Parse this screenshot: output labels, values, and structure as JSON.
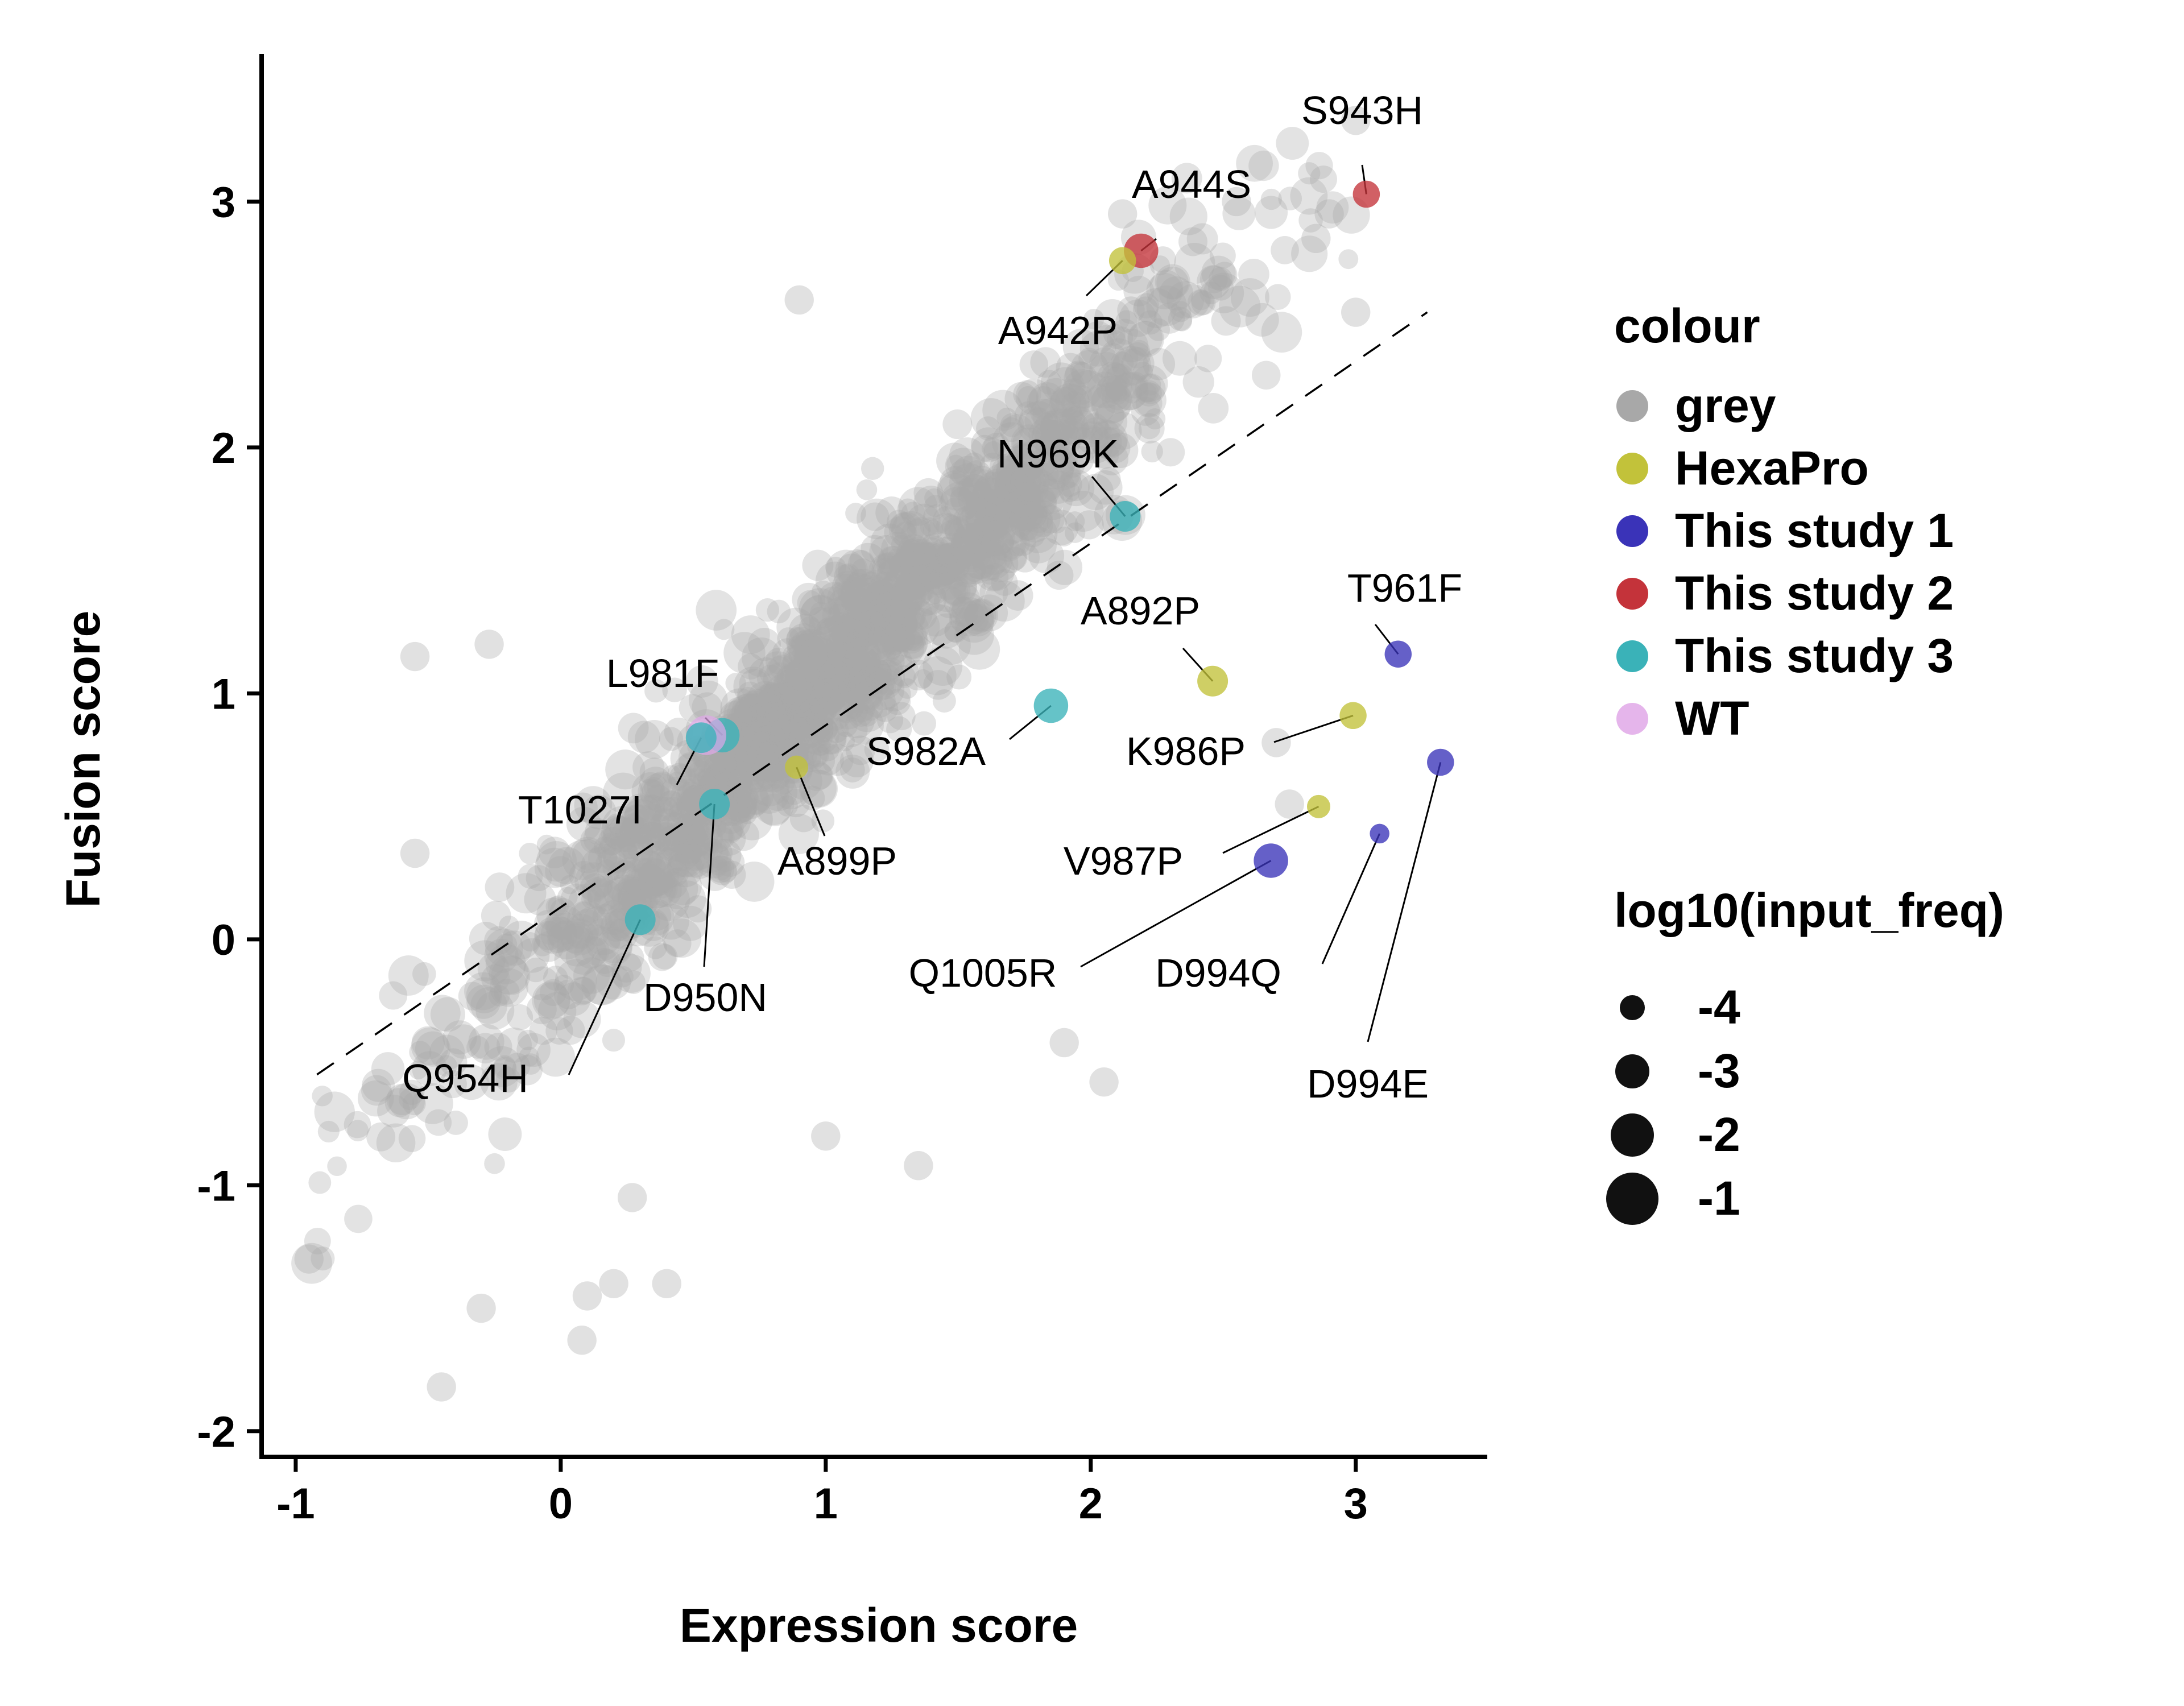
{
  "chart_data": {
    "type": "scatter",
    "title": "",
    "xlabel": "Expression score",
    "ylabel": "Fusion score",
    "xlim": [
      -1.12,
      3.55
    ],
    "ylim": [
      -2.1,
      3.6
    ],
    "xticks": [
      -1,
      0,
      1,
      2,
      3
    ],
    "yticks": [
      -2,
      -1,
      0,
      1,
      2,
      3
    ],
    "x_tick_labels": [
      "-1",
      "0",
      "1",
      "2",
      "3"
    ],
    "y_tick_labels": [
      "-2",
      "-1",
      "0",
      "1",
      "2",
      "3"
    ],
    "grid": false,
    "legend_position": "right",
    "reference_line": {
      "style": "dashed",
      "x": [
        -0.92,
        3.27
      ],
      "y": [
        -0.55,
        2.55
      ]
    },
    "colour_legend": {
      "title": "colour",
      "entries": [
        {
          "name": "grey",
          "color": "#a8a8a8"
        },
        {
          "name": "HexaPro",
          "color": "#c2c23a"
        },
        {
          "name": "This study 1",
          "color": "#3a33b8"
        },
        {
          "name": "This study 2",
          "color": "#c4333a"
        },
        {
          "name": "This study 3",
          "color": "#3ab2b8"
        },
        {
          "name": "WT",
          "color": "#e0a8e8"
        }
      ]
    },
    "size_legend": {
      "title": "log10(input_freq)",
      "entries": [
        {
          "label": "-4",
          "value": -4
        },
        {
          "label": "-3",
          "value": -3
        },
        {
          "label": "-2",
          "value": -2
        },
        {
          "label": "-1",
          "value": -1
        }
      ]
    },
    "background_cloud": {
      "group": "grey",
      "description_count": 1600,
      "outliers": [
        {
          "x": 3.0,
          "y": 3.33
        },
        {
          "x": 2.12,
          "y": 2.95
        },
        {
          "x": 2.55,
          "y": 3.0
        },
        {
          "x": 2.9,
          "y": 2.95
        },
        {
          "x": 2.85,
          "y": 2.85
        },
        {
          "x": 0.9,
          "y": 2.6
        },
        {
          "x": 3.0,
          "y": 2.55
        },
        {
          "x": -0.55,
          "y": 1.15
        },
        {
          "x": -0.27,
          "y": 1.2
        },
        {
          "x": -0.95,
          "y": -1.3
        },
        {
          "x": -0.3,
          "y": -1.5
        },
        {
          "x": 0.1,
          "y": -1.45
        },
        {
          "x": 0.08,
          "y": -1.63
        },
        {
          "x": 0.2,
          "y": -1.4
        },
        {
          "x": 0.4,
          "y": -1.4
        },
        {
          "x": -0.45,
          "y": -1.82
        },
        {
          "x": 1.35,
          "y": -0.92
        },
        {
          "x": 1.9,
          "y": -0.42
        },
        {
          "x": 2.05,
          "y": -0.58
        },
        {
          "x": 1.0,
          "y": -0.8
        },
        {
          "x": 0.27,
          "y": -1.05
        },
        {
          "x": -0.55,
          "y": 0.35
        },
        {
          "x": 2.75,
          "y": 0.55
        },
        {
          "x": 2.7,
          "y": 0.8
        }
      ]
    },
    "labeled_points": [
      {
        "label": "S943H",
        "x": 3.04,
        "y": 3.03,
        "group": "This study 2",
        "log10_input_freq": -2.5
      },
      {
        "label": "A944S",
        "x": 2.19,
        "y": 2.8,
        "group": "This study 2",
        "log10_input_freq": -1.5
      },
      {
        "label": "A942P",
        "x": 2.12,
        "y": 2.76,
        "group": "HexaPro",
        "log10_input_freq": -2.5
      },
      {
        "label": "N969K",
        "x": 2.13,
        "y": 1.72,
        "group": "This study 3",
        "log10_input_freq": -2.0
      },
      {
        "label": "T961F",
        "x": 3.16,
        "y": 1.16,
        "group": "This study 1",
        "log10_input_freq": -2.5
      },
      {
        "label": "A892P",
        "x": 2.46,
        "y": 1.05,
        "group": "HexaPro",
        "log10_input_freq": -2.0
      },
      {
        "label": "S982A",
        "x": 1.85,
        "y": 0.95,
        "group": "This study 3",
        "log10_input_freq": -1.5
      },
      {
        "label": "K986P",
        "x": 2.99,
        "y": 0.91,
        "group": "HexaPro",
        "log10_input_freq": -2.5
      },
      {
        "label": "L981F",
        "x": 0.61,
        "y": 0.83,
        "group": "This study 3",
        "log10_input_freq": -1.5
      },
      {
        "label": "WT",
        "x": 0.55,
        "y": 0.83,
        "group": "WT",
        "log10_input_freq": -0.8
      },
      {
        "label": "T1027I",
        "x": 0.53,
        "y": 0.82,
        "group": "This study 3",
        "log10_input_freq": -2.0
      },
      {
        "label": "A899P",
        "x": 0.89,
        "y": 0.7,
        "group": "HexaPro",
        "log10_input_freq": -3.0
      },
      {
        "label": "D950N",
        "x": 0.58,
        "y": 0.55,
        "group": "This study 3",
        "log10_input_freq": -2.0
      },
      {
        "label": "V987P",
        "x": 2.86,
        "y": 0.54,
        "group": "HexaPro",
        "log10_input_freq": -3.0
      },
      {
        "label": "Q1005R",
        "x": 2.68,
        "y": 0.32,
        "group": "This study 1",
        "log10_input_freq": -1.5
      },
      {
        "label": "D994Q",
        "x": 3.09,
        "y": 0.43,
        "group": "This study 1",
        "log10_input_freq": -3.5
      },
      {
        "label": "D994E",
        "x": 3.32,
        "y": 0.72,
        "group": "This study 1",
        "log10_input_freq": -2.5
      },
      {
        "label": "Q954H",
        "x": 0.3,
        "y": 0.08,
        "group": "This study 3",
        "log10_input_freq": -2.0
      }
    ]
  }
}
